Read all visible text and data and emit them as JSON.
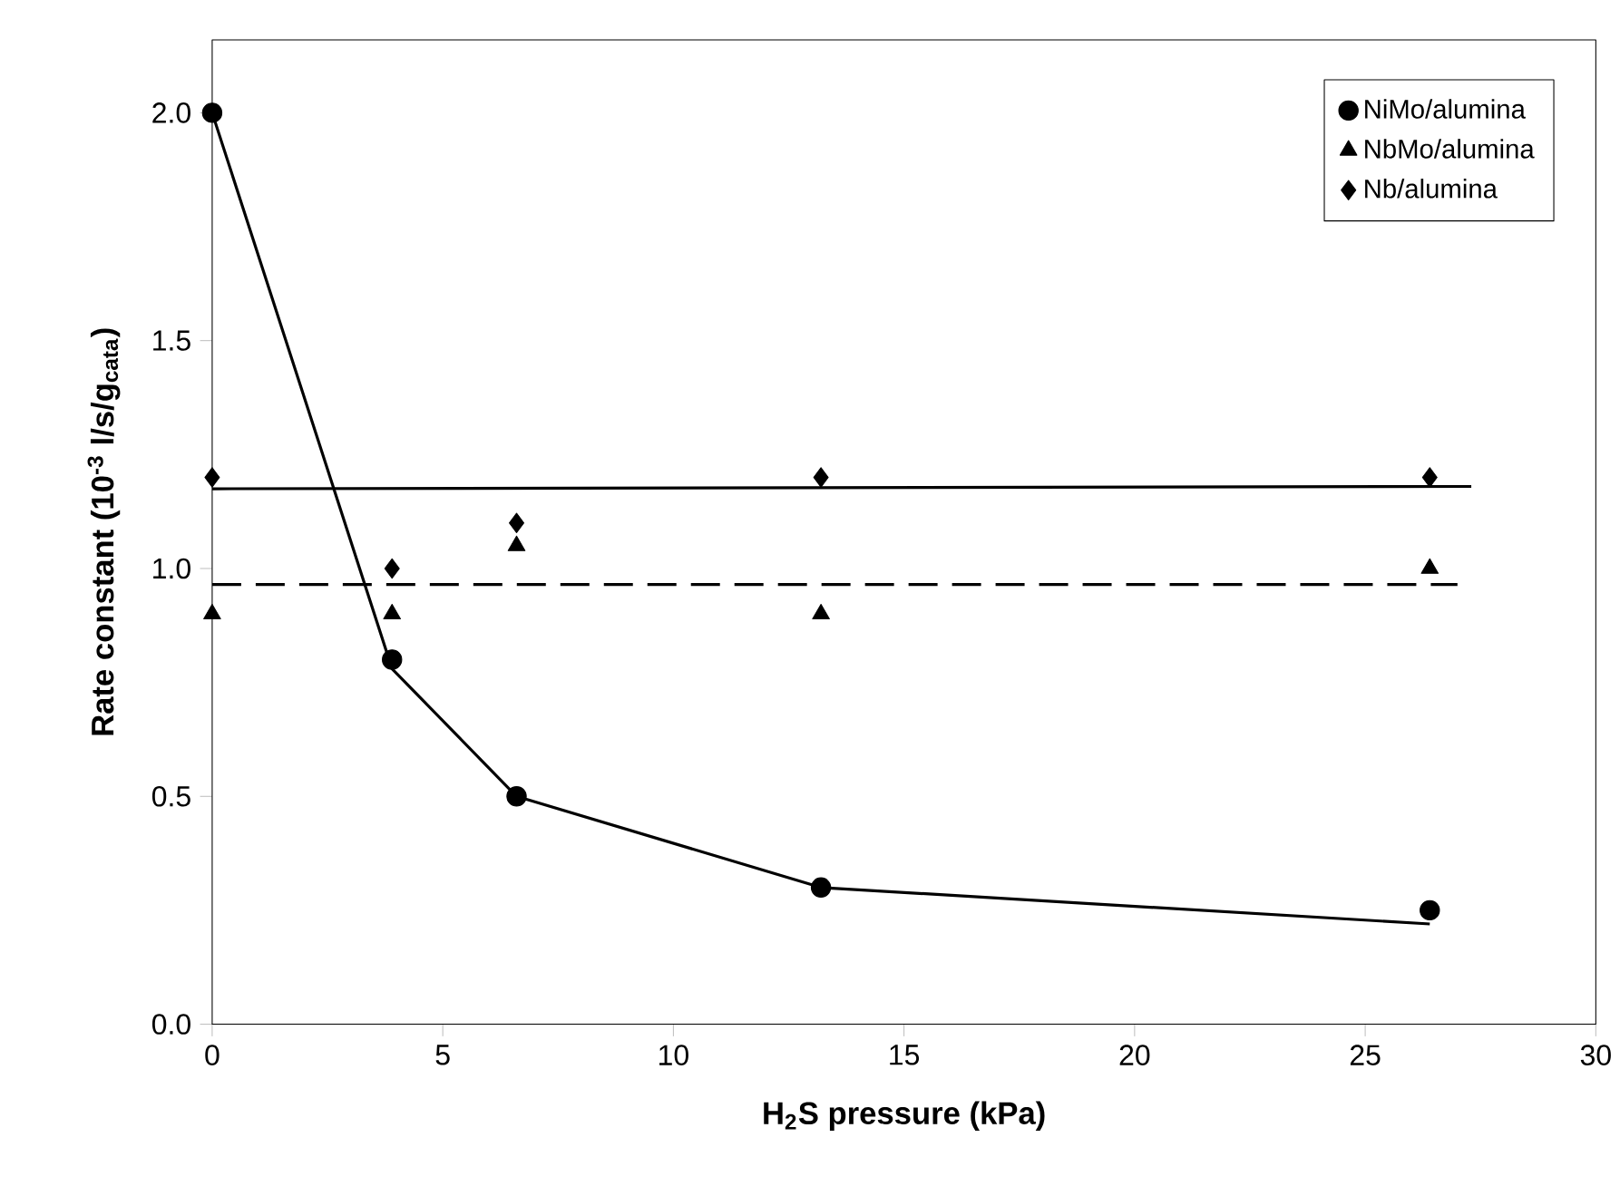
{
  "chart_data": {
    "type": "scatter",
    "xlabel": "H$_{2}$S pressure (kPa)",
    "ylabel": "Rate constant (10$^{-3}$ l/s/g$_{cata}$)",
    "xlim": [
      0,
      30
    ],
    "ylim": [
      0,
      2.16
    ],
    "xticks": [
      0,
      5,
      10,
      15,
      20,
      25,
      30
    ],
    "yticks": [
      {
        "value": 0,
        "label": "0.0"
      },
      {
        "value": 0.5,
        "label": "0.5"
      },
      {
        "value": 1,
        "label": "1.0"
      },
      {
        "value": 1.5,
        "label": "1.5"
      },
      {
        "value": 2,
        "label": "2.0"
      }
    ],
    "legend": "top right",
    "grid": false,
    "series": [
      {
        "name": "NiMo/alumina",
        "marker": "circle",
        "color": "#000000",
        "x": [
          0,
          3.9,
          6.6,
          13.2,
          26.4
        ],
        "values": [
          2.0,
          0.8,
          0.5,
          0.3,
          0.25
        ]
      },
      {
        "name": "NbMo/alumina",
        "marker": "triangle",
        "color": "#000000",
        "x": [
          0,
          3.9,
          6.6,
          13.2,
          26.4
        ],
        "values": [
          0.9,
          0.9,
          1.05,
          0.9,
          1.0
        ]
      },
      {
        "name": "Nb/alumina",
        "marker": "diamond",
        "color": "#000000",
        "x": [
          0,
          3.9,
          6.6,
          13.2,
          26.4
        ],
        "values": [
          1.2,
          1.0,
          1.1,
          1.2,
          1.2
        ]
      },
      {
        "type": "line",
        "marker": "none",
        "line_style": "solid",
        "color": "#000000",
        "x": [
          0,
          3.9,
          6.6,
          13.2,
          26.4
        ],
        "values": [
          2.0,
          0.78,
          0.5,
          0.3,
          0.22
        ]
      },
      {
        "type": "line",
        "marker": "none",
        "line_style": "dashed",
        "color": "#000000",
        "x": [
          0,
          27
        ],
        "values": [
          0.965,
          0.965
        ]
      },
      {
        "type": "line",
        "marker": "none",
        "line_style": "solid",
        "color": "#000000",
        "x": [
          0,
          27.3
        ],
        "values": [
          1.175,
          1.18
        ]
      }
    ]
  }
}
